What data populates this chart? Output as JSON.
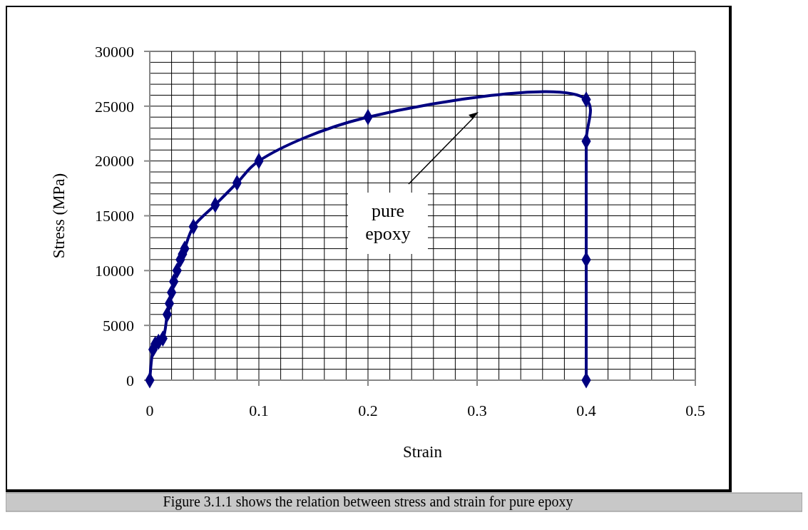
{
  "chart_data": {
    "type": "line",
    "xlabel": "Strain",
    "ylabel": "Stress (MPa)",
    "x": [
      0,
      0.003,
      0.005,
      0.008,
      0.012,
      0.016,
      0.018,
      0.02,
      0.022,
      0.025,
      0.028,
      0.03,
      0.032,
      0.04,
      0.06,
      0.08,
      0.1,
      0.2,
      0.4,
      0.4,
      0.4,
      0.4
    ],
    "series": [
      {
        "color": "#000080",
        "values": [
          0,
          2800,
          3300,
          3500,
          3800,
          6000,
          7000,
          8000,
          9000,
          10000,
          11000,
          11500,
          12000,
          14000,
          16000,
          18000,
          20000,
          24000,
          25600,
          21800,
          11000,
          0
        ]
      }
    ],
    "xlim": [
      0,
      0.5
    ],
    "xticks": [
      0,
      0.1,
      0.2,
      0.3,
      0.4,
      0.5
    ],
    "ylim": [
      0,
      30000
    ],
    "yticks": [
      0,
      5000,
      10000,
      15000,
      20000,
      25000,
      30000
    ],
    "grid": true,
    "marker": "diamond",
    "line_style": "solid",
    "annotations": [
      "pure epoxy",
      "Figure 3.1.1 shows the relation between stress and strain for pure epoxy"
    ]
  }
}
